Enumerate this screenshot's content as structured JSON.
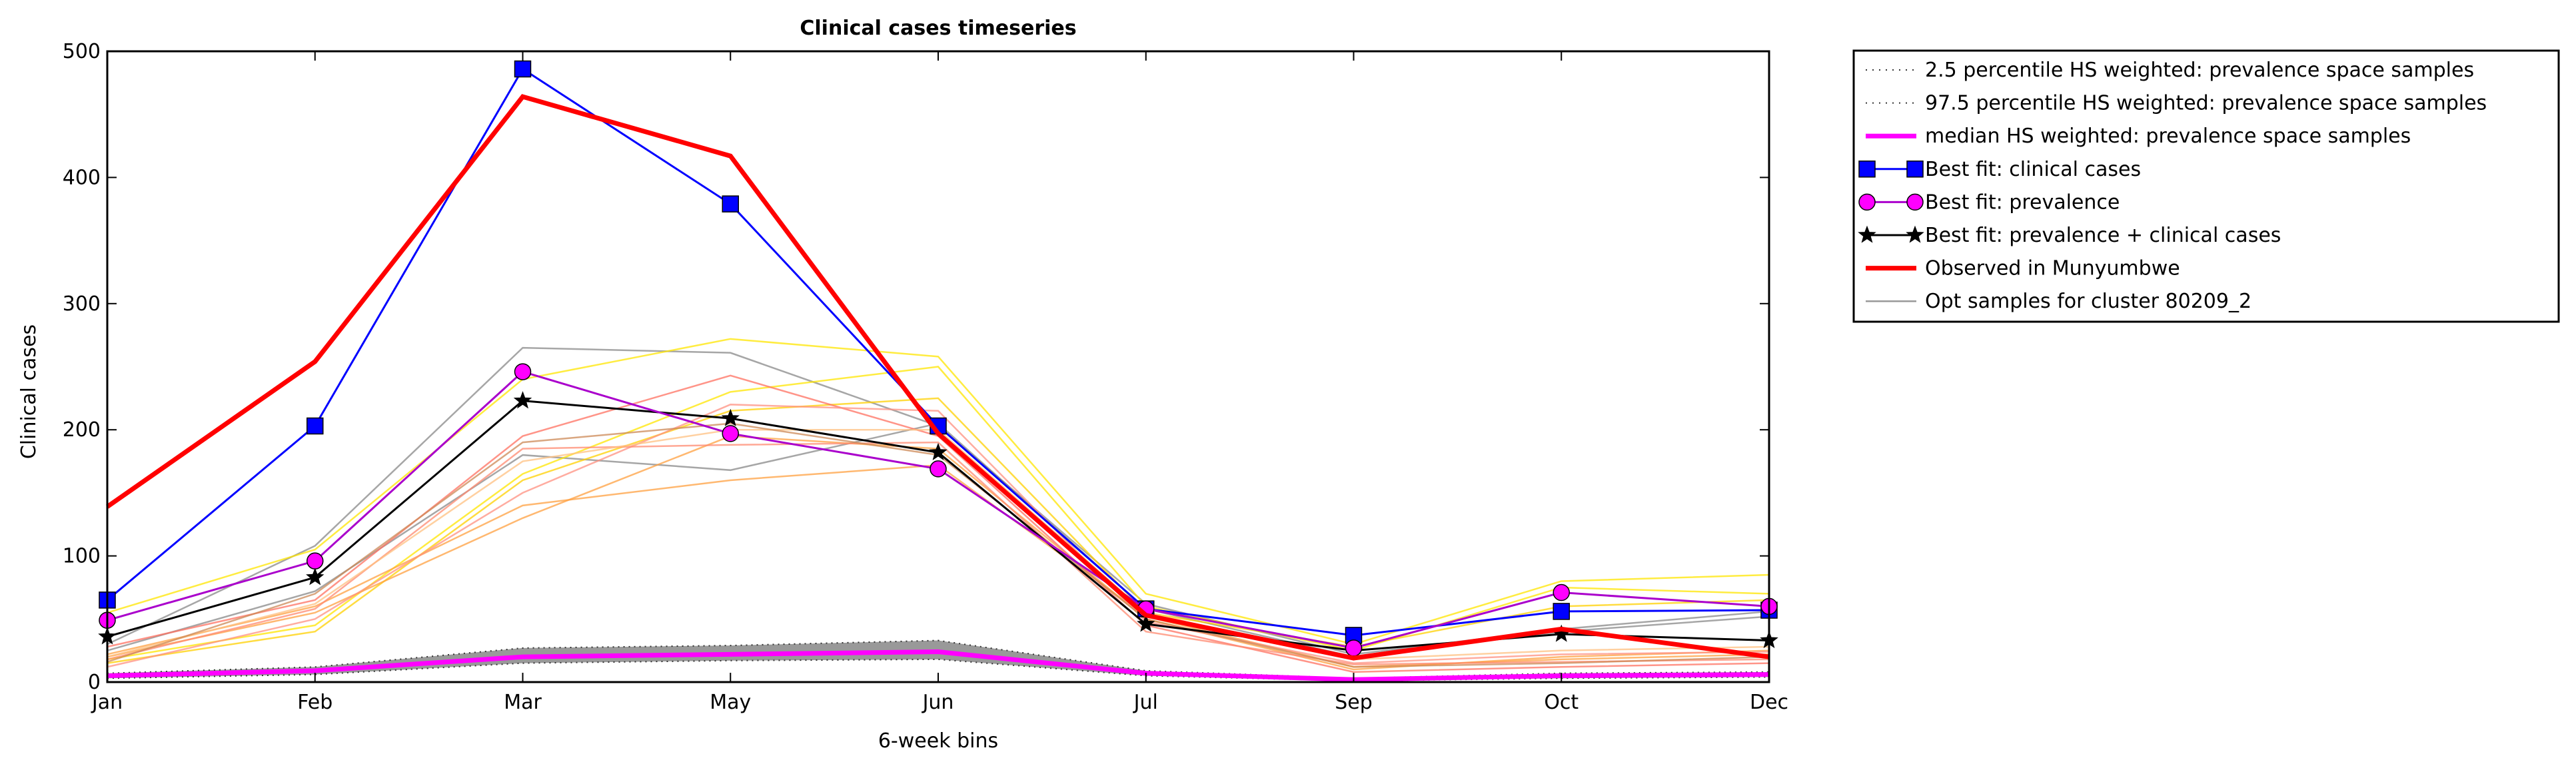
{
  "chart_data": {
    "type": "line",
    "title": "Clinical cases timeseries",
    "xlabel": "6-week bins",
    "ylabel": "Clinical cases",
    "categories": [
      "Jan",
      "Feb",
      "Mar",
      "May",
      "Jun",
      "Jul",
      "Sep",
      "Oct",
      "Dec"
    ],
    "ylim": [
      0,
      500
    ],
    "yticks": [
      0,
      100,
      200,
      300,
      400,
      500
    ],
    "grid": false,
    "legend_position": "outside-right",
    "legend": [
      "2.5 percentile HS weighted: prevalence space samples",
      "97.5 percentile HS weighted: prevalence space samples",
      "median HS weighted: prevalence space samples",
      "Best fit: clinical cases",
      "Best fit: prevalence",
      "Best fit: prevalence + clinical cases",
      "Observed in Munyumbwe",
      "Opt samples for cluster 80209_2"
    ],
    "band": {
      "lower": [
        3,
        6,
        15,
        17,
        18,
        5,
        1,
        3,
        4
      ],
      "upper": [
        7,
        12,
        27,
        29,
        33,
        9,
        3,
        7,
        8
      ],
      "median": [
        5,
        9,
        20,
        22,
        24,
        7,
        2,
        5,
        6
      ],
      "fill_color": "#999999",
      "median_color": "#ff00ff"
    },
    "series": [
      {
        "name": "Best fit: clinical cases",
        "color": "#0000ff",
        "marker": "square",
        "values": [
          65,
          203,
          486,
          379,
          203,
          58,
          37,
          56,
          57
        ]
      },
      {
        "name": "Best fit: prevalence",
        "color": "#aa00cc",
        "marker": "circle",
        "values": [
          49,
          96,
          246,
          197,
          169,
          58,
          27,
          71,
          60
        ]
      },
      {
        "name": "Best fit: prevalence + clinical cases",
        "color": "#000000",
        "marker": "star",
        "values": [
          36,
          83,
          223,
          209,
          182,
          46,
          25,
          38,
          33
        ]
      },
      {
        "name": "Observed in Munyumbwe",
        "color": "#ff0000",
        "marker": "none",
        "values": [
          139,
          254,
          464,
          417,
          197,
          53,
          19,
          42,
          20
        ]
      }
    ],
    "samples": [
      {
        "color": "#888888",
        "values": [
          30,
          108,
          265,
          261,
          203,
          62,
          22,
          42,
          56
        ]
      },
      {
        "color": "#888888",
        "values": [
          25,
          72,
          180,
          168,
          205,
          58,
          20,
          40,
          52
        ]
      },
      {
        "color": "#ffe600",
        "values": [
          55,
          105,
          240,
          272,
          258,
          70,
          30,
          80,
          85
        ]
      },
      {
        "color": "#ffe600",
        "values": [
          18,
          45,
          165,
          230,
          250,
          60,
          25,
          75,
          70
        ]
      },
      {
        "color": "#ffd000",
        "values": [
          15,
          40,
          160,
          215,
          225,
          55,
          28,
          60,
          65
        ]
      },
      {
        "color": "#ffa040",
        "values": [
          20,
          55,
          130,
          195,
          185,
          50,
          10,
          20,
          25
        ]
      },
      {
        "color": "#ffa040",
        "values": [
          22,
          60,
          140,
          160,
          172,
          52,
          12,
          18,
          22
        ]
      },
      {
        "color": "#ff7060",
        "values": [
          28,
          65,
          195,
          243,
          195,
          45,
          8,
          12,
          15
        ]
      },
      {
        "color": "#ff9080",
        "values": [
          12,
          50,
          150,
          220,
          215,
          48,
          15,
          22,
          24
        ]
      },
      {
        "color": "#ff8a70",
        "values": [
          18,
          58,
          185,
          188,
          190,
          40,
          14,
          16,
          18
        ]
      },
      {
        "color": "#ffc080",
        "values": [
          20,
          62,
          175,
          200,
          200,
          55,
          18,
          25,
          28
        ]
      },
      {
        "color": "#cc8855",
        "values": [
          16,
          70,
          190,
          205,
          180,
          50,
          12,
          15,
          20
        ]
      }
    ]
  }
}
